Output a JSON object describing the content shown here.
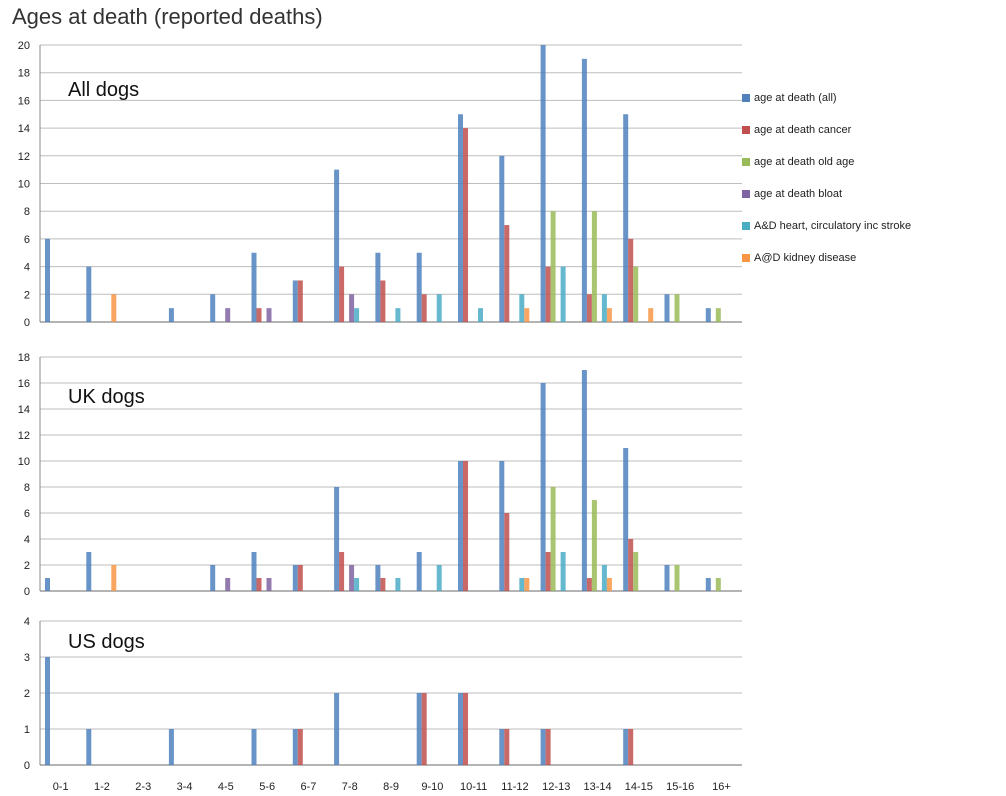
{
  "title": "Ages at death (reported deaths)",
  "colors": {
    "all": "#4f81bd",
    "cancer": "#c0504d",
    "old_age": "#9bbb59",
    "bloat": "#8064a2",
    "heart": "#4bacc6",
    "kidney": "#f79646"
  },
  "chart_data": [
    {
      "type": "bar",
      "panel_label": "All dogs",
      "categories": [
        "0-1",
        "1-2",
        "2-3",
        "3-4",
        "4-5",
        "5-6",
        "6-7",
        "7-8",
        "8-9",
        "9-10",
        "10-11",
        "11-12",
        "12-13",
        "13-14",
        "14-15",
        "15-16",
        "16+"
      ],
      "ylim": [
        0,
        20
      ],
      "yticks": [
        0,
        2,
        4,
        6,
        8,
        10,
        12,
        14,
        16,
        18,
        20
      ],
      "series": [
        {
          "name": "age at death (all)",
          "color_key": "all",
          "values": [
            6,
            4,
            0,
            1,
            2,
            5,
            3,
            11,
            5,
            5,
            15,
            12,
            20,
            19,
            15,
            2,
            1
          ]
        },
        {
          "name": "age at death cancer",
          "color_key": "cancer",
          "values": [
            0,
            0,
            0,
            0,
            0,
            1,
            3,
            4,
            3,
            2,
            14,
            7,
            4,
            2,
            6,
            0,
            0
          ]
        },
        {
          "name": "age at death old age",
          "color_key": "old_age",
          "values": [
            0,
            0,
            0,
            0,
            0,
            0,
            0,
            0,
            0,
            0,
            0,
            0,
            8,
            8,
            4,
            2,
            1
          ]
        },
        {
          "name": "age at death bloat",
          "color_key": "bloat",
          "values": [
            0,
            0,
            0,
            0,
            1,
            1,
            0,
            2,
            0,
            0,
            0,
            0,
            0,
            0,
            0,
            0,
            0
          ]
        },
        {
          "name": "A&D heart, circulatory inc stroke",
          "color_key": "heart",
          "values": [
            0,
            0,
            0,
            0,
            0,
            0,
            0,
            1,
            1,
            2,
            1,
            2,
            4,
            2,
            0,
            0,
            0
          ]
        },
        {
          "name": "A@D kidney disease",
          "color_key": "kidney",
          "values": [
            0,
            2,
            0,
            0,
            0,
            0,
            0,
            0,
            0,
            0,
            0,
            1,
            0,
            1,
            1,
            0,
            0
          ]
        }
      ]
    },
    {
      "type": "bar",
      "panel_label": "UK dogs",
      "categories": [
        "0-1",
        "1-2",
        "2-3",
        "3-4",
        "4-5",
        "5-6",
        "6-7",
        "7-8",
        "8-9",
        "9-10",
        "10-11",
        "11-12",
        "12-13",
        "13-14",
        "14-15",
        "15-16",
        "16+"
      ],
      "ylim": [
        0,
        18
      ],
      "yticks": [
        0,
        2,
        4,
        6,
        8,
        10,
        12,
        14,
        16,
        18
      ],
      "series": [
        {
          "name": "age at death (all)",
          "color_key": "all",
          "values": [
            1,
            3,
            0,
            0,
            2,
            3,
            2,
            8,
            2,
            3,
            10,
            10,
            16,
            17,
            11,
            2,
            1
          ]
        },
        {
          "name": "age at death cancer",
          "color_key": "cancer",
          "values": [
            0,
            0,
            0,
            0,
            0,
            1,
            2,
            3,
            1,
            0,
            10,
            6,
            3,
            1,
            4,
            0,
            0
          ]
        },
        {
          "name": "age at death old age",
          "color_key": "old_age",
          "values": [
            0,
            0,
            0,
            0,
            0,
            0,
            0,
            0,
            0,
            0,
            0,
            0,
            8,
            7,
            3,
            2,
            1
          ]
        },
        {
          "name": "age at death bloat",
          "color_key": "bloat",
          "values": [
            0,
            0,
            0,
            0,
            1,
            1,
            0,
            2,
            0,
            0,
            0,
            0,
            0,
            0,
            0,
            0,
            0
          ]
        },
        {
          "name": "A&D heart, circulatory inc stroke",
          "color_key": "heart",
          "values": [
            0,
            0,
            0,
            0,
            0,
            0,
            0,
            1,
            1,
            2,
            0,
            1,
            3,
            2,
            0,
            0,
            0
          ]
        },
        {
          "name": "A@D kidney disease",
          "color_key": "kidney",
          "values": [
            0,
            2,
            0,
            0,
            0,
            0,
            0,
            0,
            0,
            0,
            0,
            1,
            0,
            1,
            0,
            0,
            0
          ]
        }
      ]
    },
    {
      "type": "bar",
      "panel_label": "US dogs",
      "categories": [
        "0-1",
        "1-2",
        "2-3",
        "3-4",
        "4-5",
        "5-6",
        "6-7",
        "7-8",
        "8-9",
        "9-10",
        "10-11",
        "11-12",
        "12-13",
        "13-14",
        "14-15",
        "15-16",
        "16+"
      ],
      "ylim": [
        0,
        4
      ],
      "yticks": [
        0,
        1,
        2,
        3,
        4
      ],
      "series": [
        {
          "name": "age at death (all)",
          "color_key": "all",
          "values": [
            3,
            1,
            0,
            1,
            0,
            1,
            1,
            2,
            0,
            2,
            2,
            1,
            1,
            0,
            1,
            0,
            0
          ]
        },
        {
          "name": "age at death cancer",
          "color_key": "cancer",
          "values": [
            0,
            0,
            0,
            0,
            0,
            0,
            1,
            0,
            0,
            2,
            2,
            1,
            1,
            0,
            1,
            0,
            0
          ]
        }
      ]
    }
  ],
  "legend": [
    {
      "label": "age at death (all)",
      "color_key": "all"
    },
    {
      "label": "age at death cancer",
      "color_key": "cancer"
    },
    {
      "label": "age at death old age",
      "color_key": "old_age"
    },
    {
      "label": "age at death bloat",
      "color_key": "bloat"
    },
    {
      "label": "A&D heart, circulatory inc stroke",
      "color_key": "heart"
    },
    {
      "label": "A@D kidney disease",
      "color_key": "kidney"
    }
  ]
}
